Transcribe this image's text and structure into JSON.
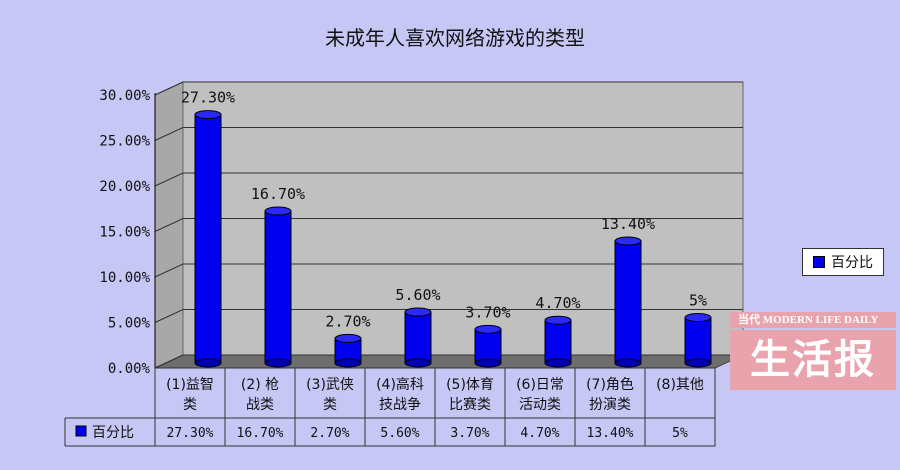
{
  "chart_data": {
    "type": "bar",
    "title": "未成年人喜欢网络游戏的类型",
    "categories": [
      [
        "(1)益智",
        "类"
      ],
      [
        "(2) 枪",
        "战类"
      ],
      [
        "(3)武侠",
        "类"
      ],
      [
        "(4)高科",
        "技战争"
      ],
      [
        "(5)体育",
        "比赛类"
      ],
      [
        "(6)日常",
        "活动类"
      ],
      [
        "(7)角色",
        "扮演类"
      ],
      [
        "(8)其他",
        ""
      ]
    ],
    "series": [
      {
        "name": "百分比",
        "values": [
          27.3,
          16.7,
          2.7,
          5.6,
          3.7,
          4.7,
          13.4,
          5
        ],
        "labels": [
          "27.30%",
          "16.70%",
          "2.70%",
          "5.60%",
          "3.70%",
          "4.70%",
          "13.40%",
          "5%"
        ],
        "color": "#0000ee"
      }
    ],
    "yticks": [
      "0.00%",
      "5.00%",
      "10.00%",
      "15.00%",
      "20.00%",
      "25.00%",
      "30.00%"
    ],
    "ylim": [
      0,
      30
    ],
    "grid": true,
    "legend_position": "right",
    "data_table": true
  },
  "watermark": {
    "top": "当代 MODERN LIFE DAILY",
    "main": "生活报"
  }
}
